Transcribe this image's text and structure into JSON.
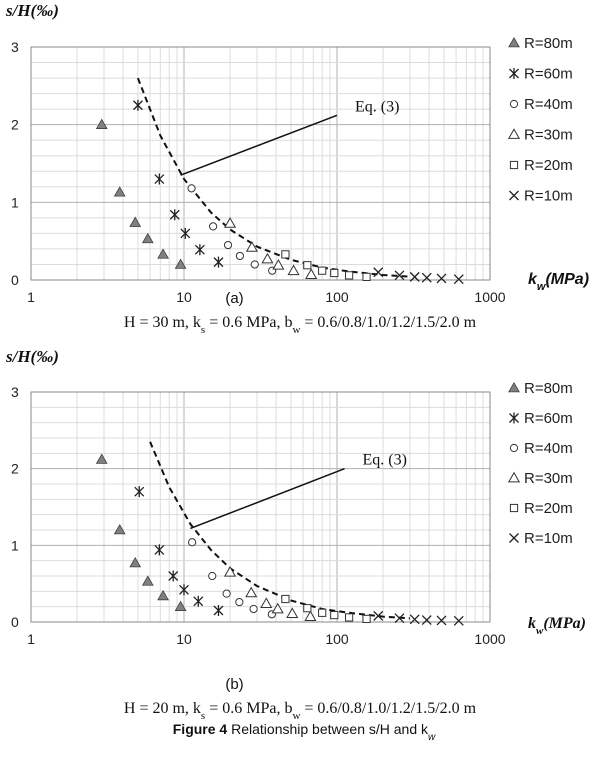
{
  "figure_caption": "Figure 4 Relationship between s/H and k_w",
  "chart_data": [
    {
      "type": "scatter",
      "panel_label": "(a)",
      "ylabel": "s/H(‰)",
      "xlabel": "k_w(MPa)",
      "subtitle": "H = 30 m, k_s = 0.6 MPa, b_w = 0.6/0.8/1.0/1.2/1.5/2.0 m",
      "x_scale": "log",
      "xlim": [
        1,
        1000
      ],
      "ylim": [
        0,
        3
      ],
      "x_ticks": [
        "1",
        "10",
        "100",
        "1000"
      ],
      "y_ticks": [
        "0",
        "1",
        "2",
        "3"
      ],
      "grid": true,
      "legend_position": "right",
      "annotation": "Eq. (3)",
      "series": [
        {
          "name": "R=80m",
          "marker": "triangle-filled",
          "x": [
            2.9,
            3.8,
            4.8,
            5.8,
            7.3,
            9.5
          ],
          "y": [
            2.0,
            1.13,
            0.74,
            0.53,
            0.33,
            0.2
          ]
        },
        {
          "name": "R=60m",
          "marker": "asterisk",
          "x": [
            5.0,
            6.9,
            8.7,
            10.2,
            12.7,
            16.8
          ],
          "y": [
            2.25,
            1.3,
            0.84,
            0.6,
            0.39,
            0.23
          ]
        },
        {
          "name": "R=40m",
          "marker": "circle",
          "x": [
            11.2,
            15.5,
            19.4,
            23.2,
            29.0,
            37.7
          ],
          "y": [
            1.18,
            0.69,
            0.45,
            0.31,
            0.2,
            0.12
          ]
        },
        {
          "name": "R=30m",
          "marker": "triangle-open",
          "x": [
            20.0,
            27.8,
            35.1,
            41.4,
            52.0,
            67.8
          ],
          "y": [
            0.73,
            0.42,
            0.27,
            0.19,
            0.12,
            0.07
          ]
        },
        {
          "name": "R=20m",
          "marker": "square",
          "x": [
            46.0,
            64.0,
            80.0,
            96.0,
            120.0,
            156.0
          ],
          "y": [
            0.33,
            0.19,
            0.12,
            0.09,
            0.06,
            0.04
          ]
        },
        {
          "name": "R=10m",
          "marker": "x",
          "x": [
            186.0,
            256.0,
            322.0,
            386.0,
            482.0,
            625.0
          ],
          "y": [
            0.1,
            0.06,
            0.04,
            0.03,
            0.02,
            0.01
          ]
        }
      ],
      "curve": {
        "name": "Eq. (3)",
        "x": [
          5.0,
          7.0,
          10.0,
          15.0,
          20.0,
          30.0,
          50.0,
          80.0,
          120.0,
          200.0,
          300.0
        ],
        "y": [
          2.6,
          1.86,
          1.3,
          0.87,
          0.65,
          0.43,
          0.26,
          0.16,
          0.11,
          0.065,
          0.043
        ]
      },
      "callout": {
        "from": [
          9.5,
          1.35
        ],
        "to": [
          100.0,
          2.12
        ]
      }
    },
    {
      "type": "scatter",
      "panel_label": "(b)",
      "ylabel": "s/H(‰)",
      "xlabel": "k_w(MPa)",
      "subtitle": "H = 20 m, k_s = 0.6 MPa, b_w = 0.6/0.8/1.0/1.2/1.5/2.0 m",
      "x_scale": "log",
      "xlim": [
        1,
        1000
      ],
      "ylim": [
        0,
        3
      ],
      "x_ticks": [
        "1",
        "10",
        "100",
        "1000"
      ],
      "y_ticks": [
        "0",
        "1",
        "2",
        "3"
      ],
      "grid": true,
      "legend_position": "right",
      "annotation": "Eq. (3)",
      "series": [
        {
          "name": "R=80m",
          "marker": "triangle-filled",
          "x": [
            2.9,
            3.8,
            4.8,
            5.8,
            7.3,
            9.5
          ],
          "y": [
            2.12,
            1.2,
            0.77,
            0.53,
            0.34,
            0.2
          ]
        },
        {
          "name": "R=60m",
          "marker": "asterisk",
          "x": [
            5.1,
            6.9,
            8.5,
            10.0,
            12.4,
            16.8
          ],
          "y": [
            1.7,
            0.94,
            0.6,
            0.42,
            0.27,
            0.15
          ]
        },
        {
          "name": "R=40m",
          "marker": "circle",
          "x": [
            11.3,
            15.3,
            19.0,
            23.0,
            28.5,
            37.5
          ],
          "y": [
            1.04,
            0.6,
            0.37,
            0.26,
            0.17,
            0.1
          ]
        },
        {
          "name": "R=30m",
          "marker": "triangle-open",
          "x": [
            20.0,
            27.5,
            34.5,
            41.0,
            51.0,
            67.0
          ],
          "y": [
            0.65,
            0.38,
            0.24,
            0.17,
            0.11,
            0.07
          ]
        },
        {
          "name": "R=20m",
          "marker": "square",
          "x": [
            46.0,
            64.0,
            80.0,
            96.0,
            120.0,
            156.0
          ],
          "y": [
            0.3,
            0.18,
            0.12,
            0.09,
            0.06,
            0.04
          ]
        },
        {
          "name": "R=10m",
          "marker": "x",
          "x": [
            186.0,
            256.0,
            322.0,
            386.0,
            482.0,
            625.0
          ],
          "y": [
            0.08,
            0.05,
            0.035,
            0.025,
            0.02,
            0.015
          ]
        }
      ],
      "curve": {
        "name": "Eq. (3)",
        "x": [
          6.0,
          8.0,
          11.0,
          15.0,
          20.0,
          30.0,
          50.0,
          80.0,
          120.0,
          200.0,
          300.0
        ],
        "y": [
          2.35,
          1.76,
          1.28,
          0.94,
          0.7,
          0.47,
          0.28,
          0.17,
          0.12,
          0.07,
          0.047
        ]
      },
      "callout": {
        "from": [
          11.0,
          1.22
        ],
        "to": [
          112.0,
          2.0
        ]
      }
    }
  ]
}
